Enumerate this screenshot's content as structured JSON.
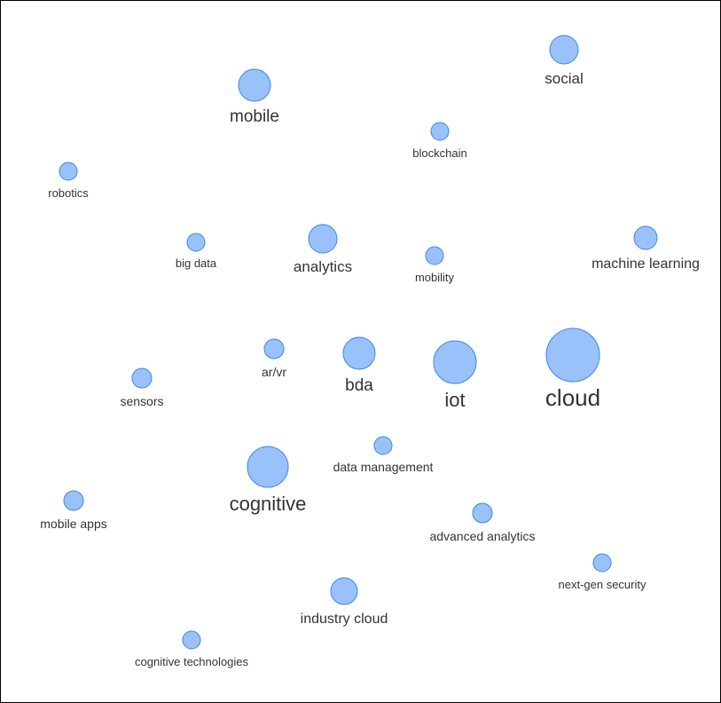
{
  "colors": {
    "bubble_fill": "#99c2fa",
    "bubble_stroke": "#3c86e4",
    "label": "#333333",
    "border": "#000000",
    "background": "#ffffff"
  },
  "terms": [
    {
      "id": "cloud",
      "label": "cloud"
    },
    {
      "id": "iot",
      "label": "iot"
    },
    {
      "id": "cognitive",
      "label": "cognitive"
    },
    {
      "id": "mobile",
      "label": "mobile"
    },
    {
      "id": "bda",
      "label": "bda"
    },
    {
      "id": "social",
      "label": "social"
    },
    {
      "id": "analytics",
      "label": "analytics"
    },
    {
      "id": "industry-cloud",
      "label": "industry cloud"
    },
    {
      "id": "machine-learning",
      "label": "machine learning"
    },
    {
      "id": "advanced-analytics",
      "label": "advanced analytics"
    },
    {
      "id": "sensors",
      "label": "sensors"
    },
    {
      "id": "ar-vr",
      "label": "ar/vr"
    },
    {
      "id": "mobile-apps",
      "label": "mobile apps"
    },
    {
      "id": "data-management",
      "label": "data management"
    },
    {
      "id": "big-data",
      "label": "big data"
    },
    {
      "id": "robotics",
      "label": "robotics"
    },
    {
      "id": "blockchain",
      "label": "blockchain"
    },
    {
      "id": "cognitive-technologies",
      "label": "cognitive technologies"
    },
    {
      "id": "next-gen-security",
      "label": "next-gen security"
    },
    {
      "id": "mobility",
      "label": "mobility"
    }
  ]
}
